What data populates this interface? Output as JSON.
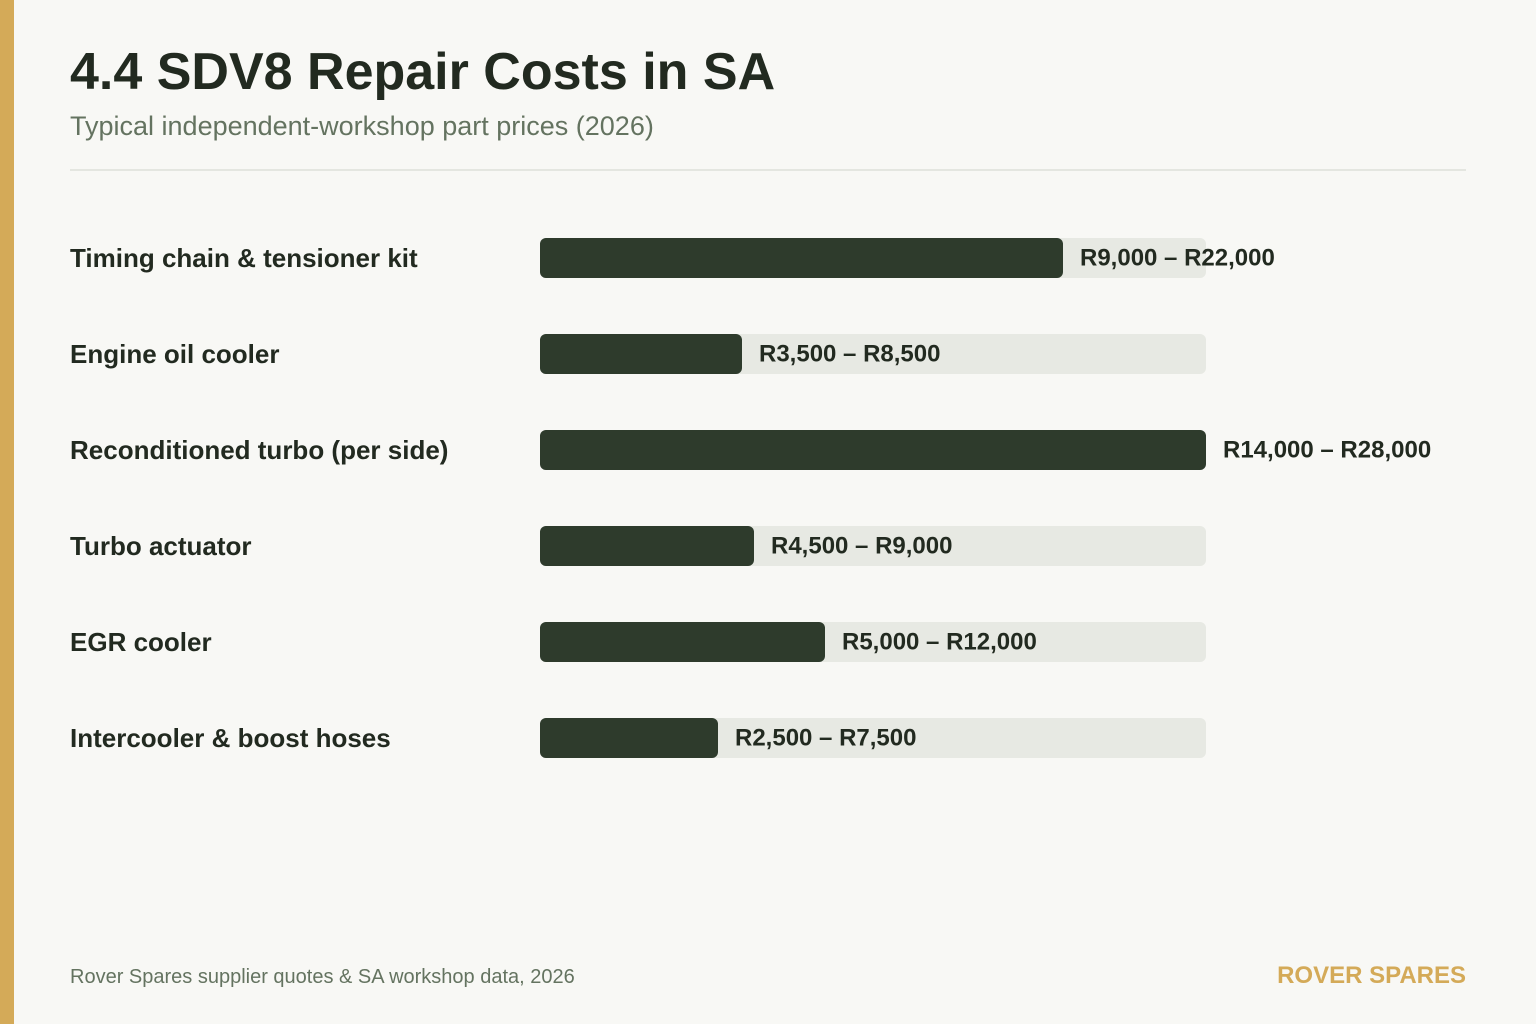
{
  "colors": {
    "accent": "#d4aa58",
    "bar_fill": "#2e3b2c",
    "bar_track": "#e7e9e3",
    "text_dark": "#222a20",
    "text_muted": "#647360"
  },
  "chart_data": {
    "type": "bar",
    "orientation": "horizontal",
    "title": "4.4 SDV8 Repair Costs in SA",
    "subtitle": "Typical independent-workshop part prices (2026)",
    "unit": "ZAR",
    "categories": [
      "Timing chain & tensioner kit",
      "Engine oil cooler",
      "Reconditioned turbo (per side)",
      "Turbo actuator",
      "EGR cooler",
      "Intercooler & boost hoses"
    ],
    "series": [
      {
        "low": [
          9000,
          3500,
          14000,
          4500,
          5000,
          2500
        ],
        "high": [
          22000,
          8500,
          28000,
          9000,
          12000,
          7500
        ]
      }
    ],
    "value_labels": [
      "R9,000 – R22,000",
      "R3,500 – R8,500",
      "R14,000 – R28,000",
      "R4,500 – R9,000",
      "R5,000 – R12,000",
      "R2,500 – R7,500"
    ],
    "xlim": [
      0,
      28000
    ],
    "grid": false,
    "legend": "none"
  },
  "footer": {
    "source": "Rover Spares supplier quotes & SA workshop data, 2026",
    "brand": "ROVER SPARES"
  }
}
